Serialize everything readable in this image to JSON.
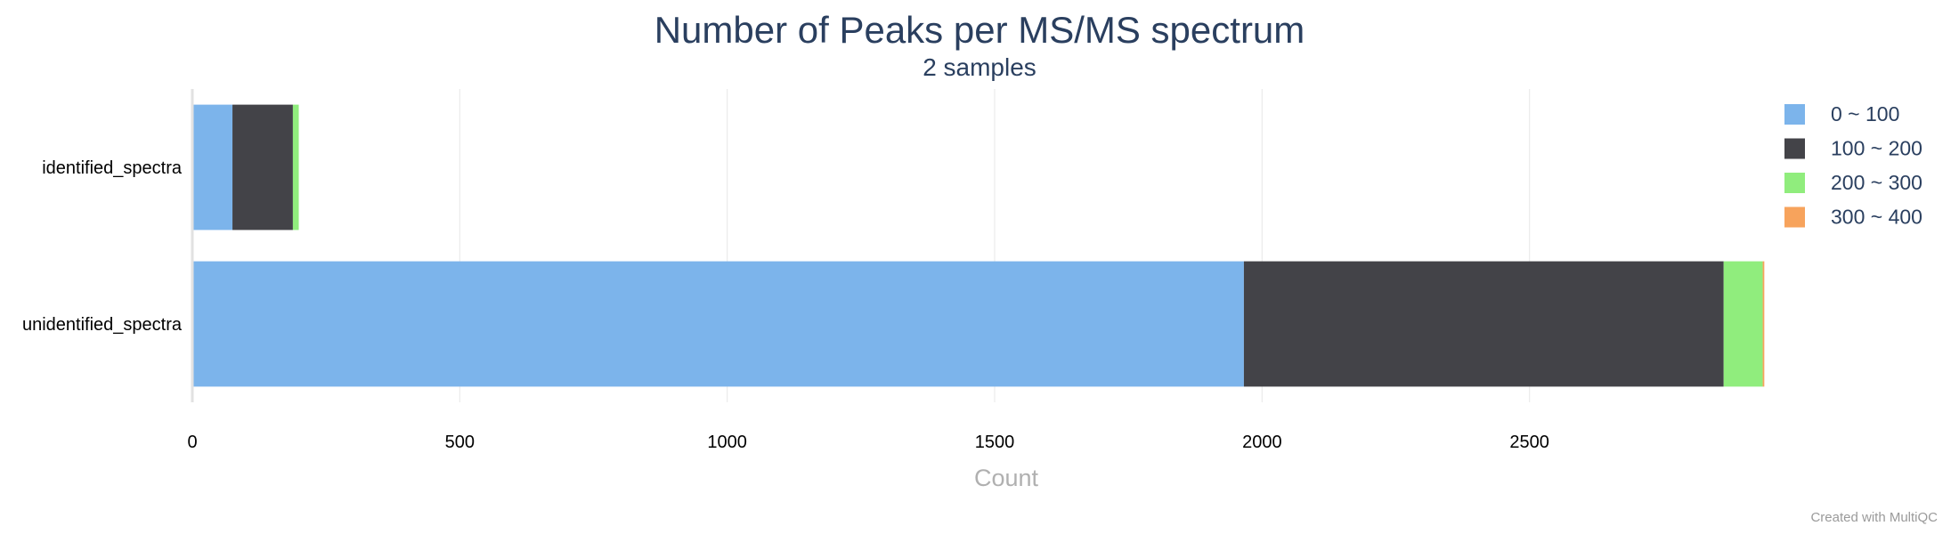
{
  "chart_data": {
    "type": "bar",
    "orientation": "horizontal",
    "stacked": true,
    "title": "Number of Peaks per MS/MS spectrum",
    "subtitle": "2 samples",
    "xlabel": "Count",
    "ylabel": "",
    "xlim": [
      0,
      3000
    ],
    "x_ticks": [
      0,
      500,
      1000,
      1500,
      2000,
      2500
    ],
    "grid": true,
    "legend_position": "right",
    "categories": [
      "identified_spectra",
      "unidentified_spectra"
    ],
    "series": [
      {
        "name": "0 ~ 100",
        "color": "#7cb4eb",
        "values": [
          75,
          1966
        ]
      },
      {
        "name": "100 ~ 200",
        "color": "#434348",
        "values": [
          113,
          897
        ]
      },
      {
        "name": "200 ~ 300",
        "color": "#90ed7d",
        "values": [
          11,
          73
        ]
      },
      {
        "name": "300 ~ 400",
        "color": "#f7a35c",
        "values": [
          0,
          3
        ]
      }
    ]
  },
  "footer": {
    "credit": "Created with MultiQC"
  }
}
